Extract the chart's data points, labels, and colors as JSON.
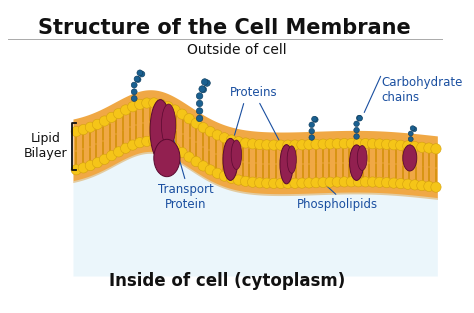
{
  "title": "Structure of the Cell Membrane",
  "title_fontsize": 15,
  "title_fontweight": "bold",
  "outside_label": "Outside of cell",
  "inside_label": "Inside of cell (cytoplasm)",
  "lipid_bilayer_label": "Lipid\nBilayer",
  "proteins_label": "Proteins",
  "transport_protein_label": "Transport\nProtein",
  "phospholipids_label": "Phospholipids",
  "carbohydrate_label": "Carbohydrate\nchains",
  "bg_color": "#ffffff",
  "membrane_orange": "#f0a845",
  "membrane_orange_light": "#f5c878",
  "phospholipid_head_color": "#f5c518",
  "phospholipid_head_stroke": "#d4a010",
  "phospholipid_tail_color": "#d4900a",
  "protein_color": "#922050",
  "protein_stroke": "#5a0a30",
  "carbo_chain_color": "#1a6090",
  "label_color": "#1a4fa0",
  "black_color": "#111111",
  "title_underline_color": "#aaaaaa",
  "inner_bg_color": "#d8eef8"
}
